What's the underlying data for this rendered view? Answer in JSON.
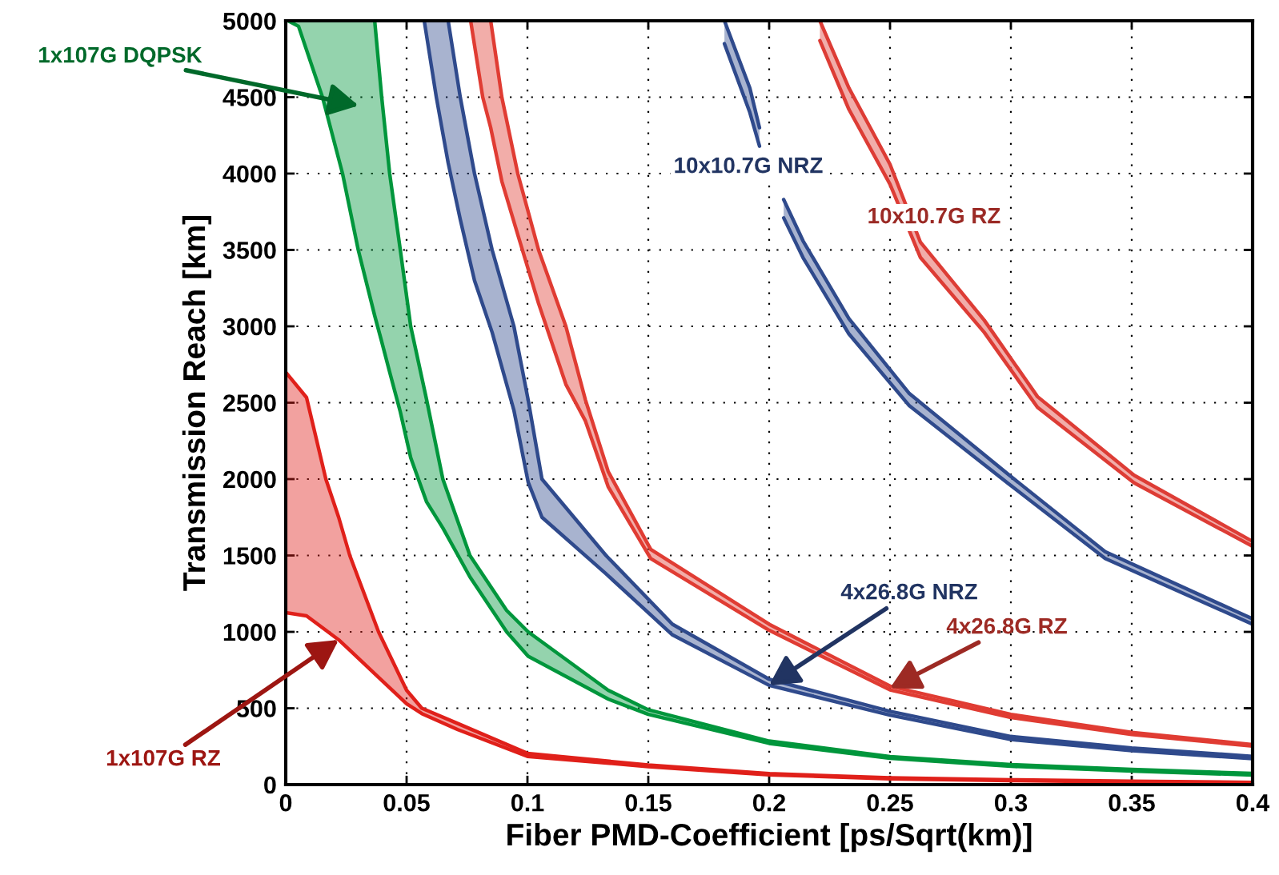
{
  "chart_data": {
    "type": "line",
    "xlabel": "Fiber PMD-Coefficient [ps/Sqrt(km)]",
    "ylabel": "Transmission Reach [km]",
    "xlim": [
      0,
      0.4
    ],
    "xticks": [
      0,
      0.05,
      0.1,
      0.15,
      0.2,
      0.25,
      0.3,
      0.35,
      0.4
    ],
    "ylim": [
      0,
      5000
    ],
    "yticks": [
      0,
      500,
      1000,
      1500,
      2000,
      2500,
      3000,
      3500,
      4000,
      4500,
      5000
    ],
    "grid": true,
    "series": [
      {
        "color": "#00963c",
        "x": [
          0.001,
          0.0053,
          0.0152,
          0.0235,
          0.03,
          0.0368,
          0.0397,
          0.043,
          0.0474,
          0.0517,
          0.0583,
          0.065,
          0.0762,
          0.0914,
          0.1003,
          0.1334,
          0.15,
          0.2,
          0.25,
          0.3,
          0.35,
          0.4
        ],
        "values": [
          5000,
          4964,
          4500,
          4000,
          3500,
          3070,
          2900,
          2700,
          2440,
          2140,
          1850,
          1680,
          1360,
          1000,
          840,
          560,
          460,
          270,
          172,
          120,
          89,
          63
        ],
        "lower": [
          5000,
          4964,
          4500,
          4000,
          3500,
          3070,
          2900,
          2700,
          2440,
          2140,
          1850,
          1680,
          1360,
          1000,
          840,
          560,
          460,
          270,
          172,
          120,
          89,
          63
        ],
        "upper": [
          5000,
          5000,
          5000,
          5000,
          5000,
          5000,
          4500,
          4000,
          3500,
          3000,
          2518,
          2000,
          1500,
          1140,
          1000,
          618,
          490,
          285,
          184,
          131,
          99,
          73
        ]
      },
      {
        "color": "#00963c",
        "x": [
          0.0368,
          0.0397,
          0.043,
          0.0474,
          0.0517,
          0.0583,
          0.065,
          0.0762,
          0.0914,
          0.1003,
          0.1334,
          0.15,
          0.2,
          0.25,
          0.3,
          0.35,
          0.4
        ],
        "values": [
          5000,
          4500,
          4000,
          3500,
          3000,
          2518,
          2000,
          1500,
          1140,
          1000,
          618,
          490,
          285,
          184,
          131,
          99,
          73
        ]
      },
      {
        "color": "#2f4a8c",
        "x": [
          0.0573,
          0.0623,
          0.0672,
          0.0722,
          0.0781,
          0.0854,
          0.0944,
          0.1003,
          0.106,
          0.1325,
          0.16,
          0.2,
          0.25,
          0.3,
          0.35,
          0.4
        ],
        "values": [
          5000,
          4500,
          4070,
          3700,
          3300,
          2960,
          2450,
          1980,
          1750,
          1380,
          980,
          650,
          455,
          295,
          222,
          170
        ],
        "lower": [
          5000,
          4500,
          4070,
          3700,
          3300,
          2960,
          2450,
          1980,
          1750,
          1380,
          980,
          650,
          455,
          295,
          222,
          170
        ],
        "upper": [
          5000,
          5000,
          5000,
          4500,
          4000,
          3500,
          3000,
          2518,
          2000,
          1500,
          1050,
          690,
          480,
          315,
          240,
          185
        ]
      },
      {
        "color": "#2f4a8c",
        "x": [
          0.0672,
          0.0722,
          0.0781,
          0.0854,
          0.0944,
          0.1003,
          0.106,
          0.1325,
          0.16,
          0.2,
          0.25,
          0.3,
          0.35,
          0.4
        ],
        "values": [
          5000,
          4500,
          4000,
          3500,
          3000,
          2518,
          2000,
          1500,
          1050,
          690,
          480,
          315,
          240,
          185
        ]
      },
      {
        "color": "#e03c33",
        "x": [
          0.0765,
          0.0815,
          0.0848,
          0.0894,
          0.096,
          0.1046,
          0.1159,
          0.124,
          0.1334,
          0.151,
          0.2,
          0.25,
          0.3,
          0.35,
          0.4
        ],
        "values": [
          5000,
          4500,
          4300,
          3950,
          3600,
          3150,
          2620,
          2380,
          1950,
          1480,
          1010,
          620,
          440,
          328,
          252
        ],
        "lower": [
          5000,
          4500,
          4300,
          3950,
          3600,
          3150,
          2620,
          2380,
          1950,
          1480,
          1010,
          620,
          440,
          328,
          252
        ],
        "upper": [
          5000,
          5000,
          5000,
          4500,
          4000,
          3500,
          3000,
          2518,
          2050,
          1540,
          1050,
          645,
          460,
          342,
          262
        ]
      },
      {
        "color": "#e03c33",
        "x": [
          0.0848,
          0.0894,
          0.096,
          0.1046,
          0.1159,
          0.124,
          0.1334,
          0.151,
          0.2,
          0.25,
          0.3,
          0.35,
          0.4
        ],
        "values": [
          5000,
          4500,
          4000,
          3500,
          3000,
          2518,
          2050,
          1540,
          1050,
          645,
          460,
          342,
          262
        ]
      },
      {
        "color": "#2f4a8c",
        "x": [
          0.1815,
          0.192,
          0.196,
          0.1987,
          0.206,
          0.214,
          0.233,
          0.258,
          0.299,
          0.339,
          0.4
        ],
        "values": [
          4850,
          4400,
          4180,
          null,
          3710,
          3450,
          2950,
          2480,
          1970,
          1480,
          1050
        ],
        "lower": [
          4850,
          4400,
          4180,
          null,
          3710,
          3450,
          2950,
          2480,
          1970,
          1480,
          1050
        ],
        "upper": [
          5000,
          4560,
          4300,
          null,
          3830,
          3560,
          3050,
          2560,
          2030,
          1525,
          1085
        ]
      },
      {
        "color": "#2f4a8c",
        "x": [
          0.1815,
          0.192,
          0.196,
          0.1987,
          0.206,
          0.214,
          0.233,
          0.258,
          0.299,
          0.339,
          0.4
        ],
        "values": [
          5000,
          4560,
          4300,
          null,
          3830,
          3560,
          3050,
          2560,
          2030,
          1525,
          1085
        ]
      },
      {
        "color": "#dd3c35",
        "x": [
          0.221,
          0.233,
          0.25,
          0.2626,
          0.289,
          0.311,
          0.351,
          0.4
        ],
        "values": [
          4870,
          4420,
          3930,
          3450,
          2960,
          2470,
          1975,
          1560
        ],
        "lower": [
          4870,
          4420,
          3930,
          3450,
          2960,
          2470,
          1975,
          1560
        ],
        "upper": [
          5000,
          4560,
          4060,
          3550,
          3040,
          2540,
          2025,
          1592
        ]
      },
      {
        "color": "#dd3c35",
        "x": [
          0.221,
          0.233,
          0.25,
          0.2626,
          0.289,
          0.311,
          0.351,
          0.4
        ],
        "values": [
          5000,
          4560,
          4060,
          3550,
          3040,
          2540,
          2025,
          1592
        ]
      },
      {
        "color": "#e0201a",
        "x": [
          0,
          0.0086,
          0.0166,
          0.0219,
          0.0265,
          0.0384,
          0.05,
          0.0563,
          0.0712,
          0.1,
          0.15,
          0.2,
          0.25,
          0.3,
          0.35,
          0.4
        ],
        "values": [
          1126,
          1105,
          1010,
          948,
          880,
          702,
          529,
          465,
          360,
          185,
          118,
          64,
          38,
          26,
          17,
          10
        ],
        "lower": [
          1126,
          1105,
          1010,
          948,
          880,
          702,
          529,
          465,
          360,
          185,
          118,
          64,
          38,
          26,
          17,
          10
        ],
        "upper": [
          2700,
          2534,
          2000,
          1750,
          1500,
          1000,
          618,
          500,
          400,
          205,
          128,
          72,
          45,
          32,
          23,
          15
        ]
      },
      {
        "color": "#e0201a",
        "x": [
          0,
          0.0086,
          0.0166,
          0.0219,
          0.0265,
          0.0384,
          0.05,
          0.0563,
          0.0712,
          0.1,
          0.15,
          0.2,
          0.25,
          0.3,
          0.35,
          0.4
        ],
        "values": [
          2700,
          2534,
          2000,
          1750,
          1500,
          1000,
          618,
          500,
          400,
          205,
          128,
          72,
          45,
          32,
          23,
          15
        ]
      }
    ],
    "annotations": [
      "1x107G DQPSK",
      "10x10.7G NRZ",
      "10x10.7G RZ",
      {
        "text": "4x26.8G NRZ",
        "x": 0.2,
        "y": 650
      },
      {
        "text": "4x26.8G RZ",
        "x": 0.25,
        "y": 632
      },
      {
        "text": "1x107G RZ",
        "x": 0.0219,
        "y": 948
      }
    ]
  }
}
